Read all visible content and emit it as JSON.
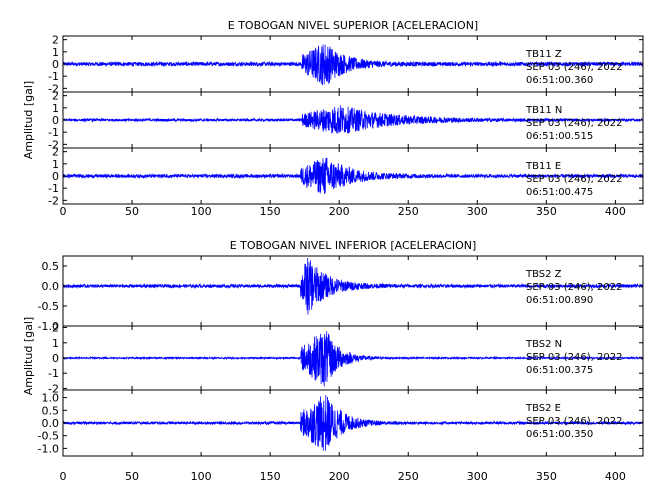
{
  "chart_data": [
    {
      "type": "line",
      "title": "E TOBOGAN NIVEL SUPERIOR [ACELERACION]",
      "ylabel": "Amplitud [gal]",
      "xlabel": "",
      "xlim": [
        0,
        420
      ],
      "xticks": [
        0,
        50,
        100,
        150,
        200,
        250,
        300,
        350,
        400
      ],
      "series": [
        {
          "name": "TB11 Z",
          "station": "TB11",
          "component": "Z",
          "date_line": "SEP 03 (246), 2022",
          "time_line": "06:51:00.360",
          "ylim": [
            -2.3,
            2.3
          ],
          "yticks": [
            2,
            1,
            0,
            -1,
            -2
          ],
          "onset_s": 173,
          "peak_s": 190,
          "noise_amp": 0.16,
          "peak_amp": 1.9,
          "decay_s": 14
        },
        {
          "name": "TB11 N",
          "station": "TB11",
          "component": "N",
          "date_line": "SEP 03 (246), 2022",
          "time_line": "06:51:00.515",
          "ylim": [
            -2.3,
            2.3
          ],
          "yticks": [
            2,
            1,
            0,
            -1,
            -2
          ],
          "onset_s": 173,
          "peak_s": 200,
          "noise_amp": 0.1,
          "peak_amp": 1.3,
          "decay_s": 35
        },
        {
          "name": "TB11 E",
          "station": "TB11",
          "component": "E",
          "date_line": "SEP 03 (246), 2022",
          "time_line": "06:51:00.475",
          "ylim": [
            -2.3,
            2.3
          ],
          "yticks": [
            2,
            1,
            0,
            -1,
            -2
          ],
          "onset_s": 172,
          "peak_s": 190,
          "noise_amp": 0.14,
          "peak_amp": 1.7,
          "decay_s": 18
        }
      ]
    },
    {
      "type": "line",
      "title": "E TOBOGAN NIVEL INFERIOR [ACELERACION]",
      "ylabel": "Amplitud [gal]",
      "xlabel": "",
      "xlim": [
        0,
        420
      ],
      "xticks": [
        0,
        50,
        100,
        150,
        200,
        250,
        300,
        350,
        400
      ],
      "series": [
        {
          "name": "TBS2 Z",
          "station": "TBS2",
          "component": "Z",
          "date_line": "SEP 03 (246), 2022",
          "time_line": "06:51:00.890",
          "ylim": [
            -1.0,
            0.75
          ],
          "yticks": [
            0.5,
            0.0,
            -0.5,
            -1.0
          ],
          "ytick_labels": [
            "0.5",
            "0.0",
            "-0.5",
            "-1.0"
          ],
          "onset_s": 172,
          "peak_s": 177,
          "noise_amp": 0.04,
          "peak_amp": 0.75,
          "decay_s": 14
        },
        {
          "name": "TBS2 N",
          "station": "TBS2",
          "component": "N",
          "date_line": "SEP 03 (246), 2022",
          "time_line": "06:51:00.375",
          "ylim": [
            -2.1,
            2.1
          ],
          "yticks": [
            2,
            1,
            0,
            -1,
            -2
          ],
          "ytick_labels": [
            "2",
            "1",
            "0",
            "-1",
            "-2"
          ],
          "onset_s": 172,
          "peak_s": 190,
          "noise_amp": 0.05,
          "peak_amp": 2.0,
          "decay_s": 10
        },
        {
          "name": "TBS2 E",
          "station": "TBS2",
          "component": "E",
          "date_line": "SEP 03 (246), 2022",
          "time_line": "06:51:00.350",
          "ylim": [
            -1.3,
            1.3
          ],
          "yticks": [
            1.0,
            0.5,
            0.0,
            -0.5,
            -1.0
          ],
          "ytick_labels": [
            "1.0",
            "0.5",
            "0.0",
            "-0.5",
            "-1.0"
          ],
          "onset_s": 172,
          "peak_s": 190,
          "noise_amp": 0.05,
          "peak_amp": 1.2,
          "decay_s": 12
        }
      ]
    }
  ],
  "style": {
    "trace_color": "#0000ff",
    "axis_color": "#000000",
    "background": "#ffffff"
  }
}
